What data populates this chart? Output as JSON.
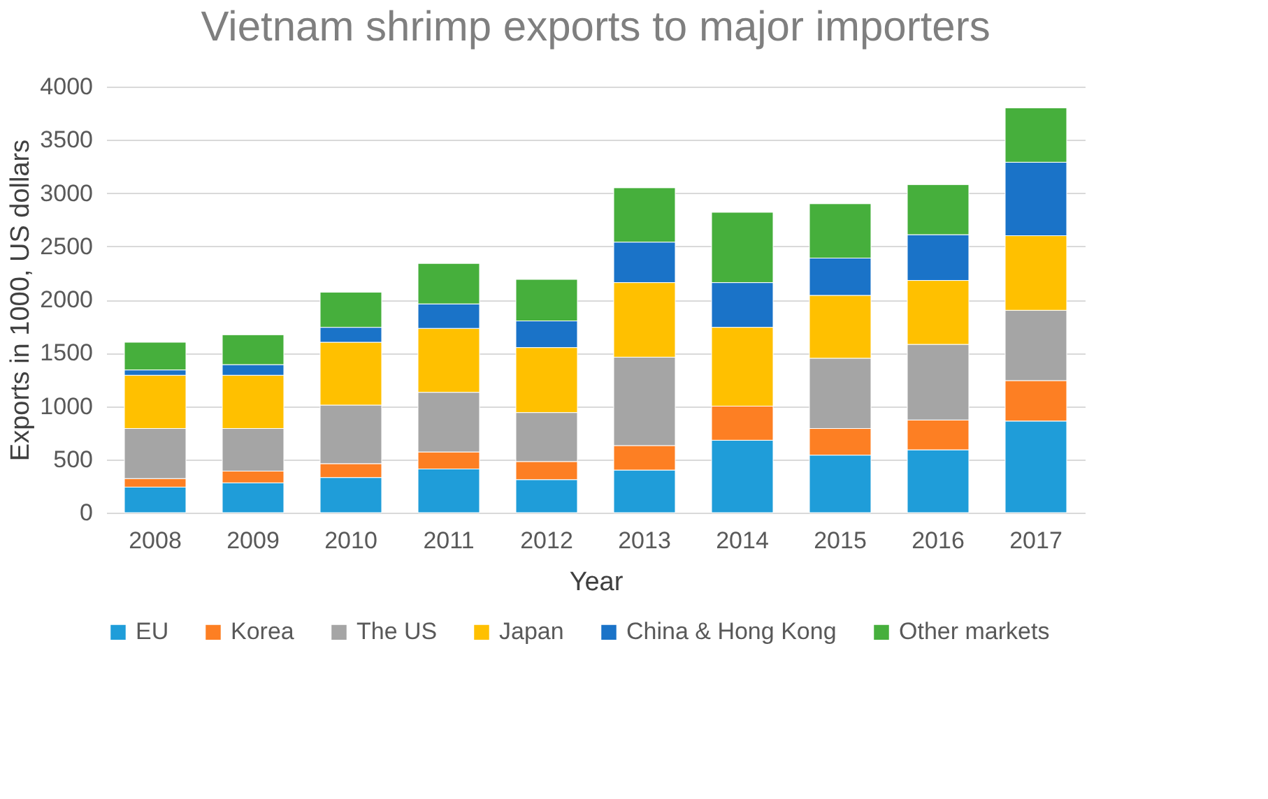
{
  "chart_data": {
    "type": "bar",
    "title": "Vietnam shrimp exports to major importers",
    "xlabel": "Year",
    "ylabel": "Exports in 1000, US dollars",
    "categories": [
      "2008",
      "2009",
      "2010",
      "2011",
      "2012",
      "2013",
      "2014",
      "2015",
      "2016",
      "2017"
    ],
    "stacked": true,
    "ylim": [
      0,
      4000
    ],
    "yticks": [
      0,
      500,
      1000,
      1500,
      2000,
      2500,
      3000,
      3500,
      4000
    ],
    "grid": "y",
    "legend": "bottom",
    "series": [
      {
        "name": "EU",
        "color": "#1f9dd9",
        "values": [
          240,
          280,
          330,
          410,
          310,
          400,
          680,
          540,
          590,
          860
        ]
      },
      {
        "name": "Korea",
        "color": "#fd7f23",
        "values": [
          80,
          110,
          130,
          160,
          170,
          230,
          320,
          250,
          280,
          380
        ]
      },
      {
        "name": "The US",
        "color": "#a5a5a5",
        "values": [
          470,
          400,
          550,
          560,
          460,
          830,
          null,
          660,
          710,
          660
        ]
      },
      {
        "name": "Japan",
        "color": "#ffc000",
        "values": [
          500,
          500,
          590,
          600,
          610,
          700,
          740,
          590,
          600,
          700
        ]
      },
      {
        "name": "China & Hong Kong",
        "color": "#1a73c8",
        "values": [
          50,
          100,
          140,
          230,
          250,
          380,
          420,
          350,
          430,
          690
        ]
      },
      {
        "name": "Other markets",
        "color": "#46af3c",
        "values": [
          260,
          280,
          330,
          380,
          390,
          510,
          660,
          510,
          470,
          510
        ]
      }
    ]
  }
}
